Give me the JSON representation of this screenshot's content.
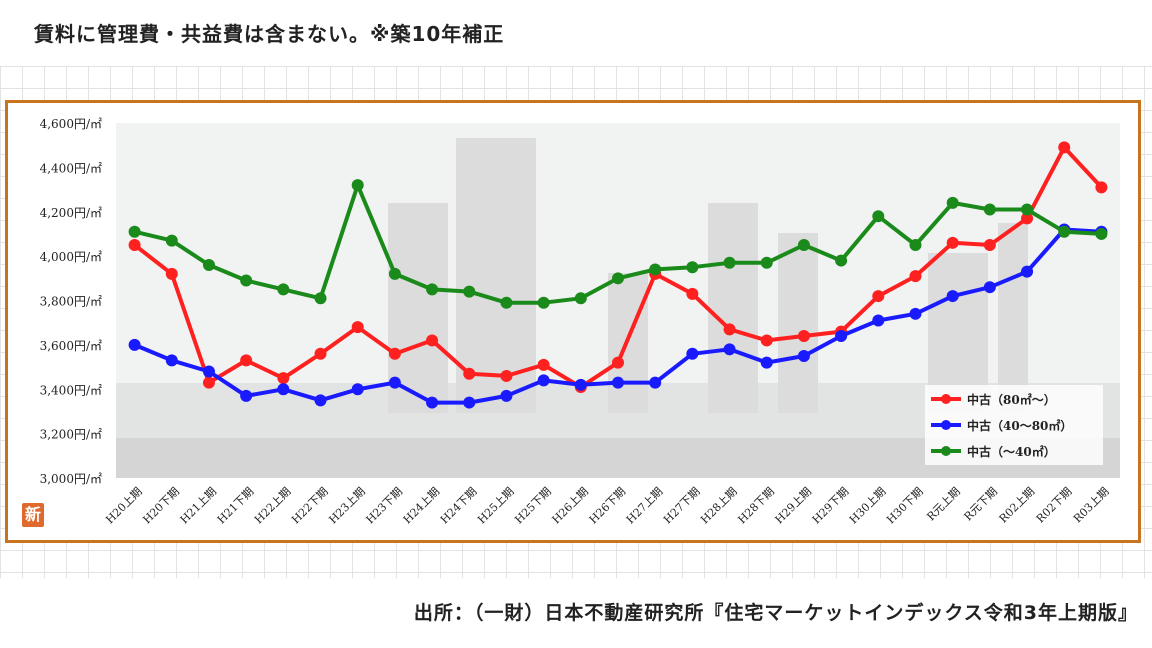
{
  "header": {
    "note": "賃料に管理費・共益費は含まない。※築10年補正"
  },
  "footer": {
    "source": "出所：（一財）日本不動産研究所『住宅マーケットインデックス令和3年上期版』"
  },
  "logo": {
    "text": "新",
    "color": "#e0692d"
  },
  "frame_color": "#c8731e",
  "chart_data": {
    "type": "line",
    "title": "",
    "xlabel": "",
    "ylabel": "",
    "ylim": [
      3000,
      4600
    ],
    "yticks": [
      3000,
      3200,
      3400,
      3600,
      3800,
      4000,
      4200,
      4400,
      4600
    ],
    "ytick_labels": [
      "3,000円/㎡",
      "3,200円/㎡",
      "3,400円/㎡",
      "3,600円/㎡",
      "3,800円/㎡",
      "4,000円/㎡",
      "4,200円/㎡",
      "4,400円/㎡",
      "4,600円/㎡"
    ],
    "grid": false,
    "legend_position": "bottom-right",
    "categories": [
      "H20上期",
      "H20下期",
      "H21上期",
      "H21下期",
      "H22上期",
      "H22下期",
      "H23上期",
      "H23下期",
      "H24上期",
      "H24下期",
      "H25上期",
      "H25下期",
      "H26上期",
      "H26下期",
      "H27上期",
      "H27下期",
      "H28上期",
      "H28下期",
      "H29上期",
      "H29下期",
      "H30上期",
      "H30下期",
      "R元上期",
      "R元下期",
      "R02上期",
      "R02下期",
      "R03上期"
    ],
    "series": [
      {
        "name": "中古（80㎡～）",
        "color": "#ff2020",
        "values": [
          4050,
          3920,
          3430,
          3530,
          3450,
          3560,
          3680,
          3560,
          3620,
          3470,
          3460,
          3510,
          3410,
          3520,
          3920,
          3830,
          3670,
          3620,
          3640,
          3660,
          3820,
          3910,
          4060,
          4050,
          4170,
          4490,
          4310
        ]
      },
      {
        "name": "中古（40～80㎡）",
        "color": "#1a1aff",
        "values": [
          3600,
          3530,
          3480,
          3370,
          3400,
          3350,
          3400,
          3430,
          3340,
          3340,
          3370,
          3440,
          3420,
          3430,
          3430,
          3560,
          3580,
          3520,
          3550,
          3640,
          3710,
          3740,
          3820,
          3860,
          3930,
          4120,
          4110
        ]
      },
      {
        "name": "中古（～40㎡）",
        "color": "#1a8a1a",
        "values": [
          4110,
          4070,
          3960,
          3890,
          3850,
          3810,
          4320,
          3920,
          3850,
          3840,
          3790,
          3790,
          3810,
          3900,
          3940,
          3950,
          3970,
          3970,
          4050,
          3980,
          4180,
          4050,
          4240,
          4210,
          4210,
          4110,
          4100
        ]
      }
    ]
  }
}
